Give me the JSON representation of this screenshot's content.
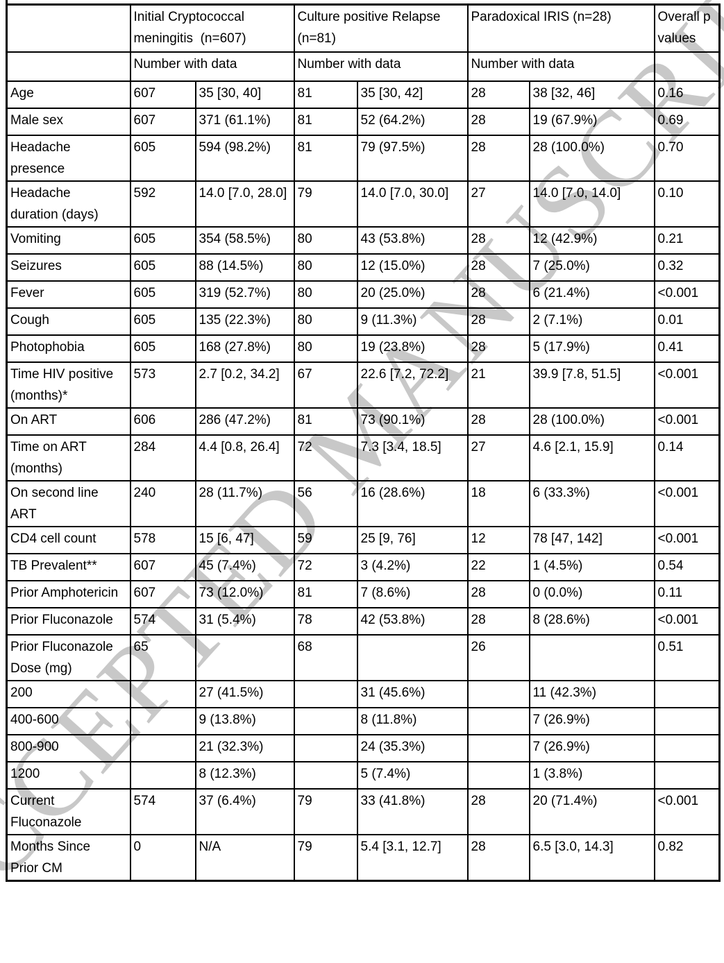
{
  "watermark": "ACCEPTED MANUSCRIPT",
  "table": {
    "header_row": [
      {
        "label": "",
        "colspan": 1
      },
      {
        "label": "Initial Cryptococcal\nmeningitis  (n=607)",
        "colspan": 2
      },
      {
        "label": "Culture positive Relapse\n(n=81)",
        "colspan": 2
      },
      {
        "label": "Paradoxical IRIS (n=28)",
        "colspan": 2
      },
      {
        "label": "Overall p\nvalues",
        "colspan": 1
      }
    ],
    "subheader_row": [
      {
        "label": "",
        "colspan": 1
      },
      {
        "label": "Number with data",
        "colspan": 2
      },
      {
        "label": "Number with data",
        "colspan": 2
      },
      {
        "label": "Number with data",
        "colspan": 2
      },
      {
        "label": "",
        "colspan": 1
      }
    ],
    "rows": [
      {
        "label": "Age",
        "cells": [
          "607",
          "35 [30, 40]",
          "81",
          "35 [30, 42]",
          "28",
          "38 [32, 46]",
          "0.16"
        ]
      },
      {
        "label": "Male sex",
        "cells": [
          "607",
          "371 (61.1%)",
          "81",
          "52 (64.2%)",
          "28",
          "19 (67.9%)",
          "0.69"
        ]
      },
      {
        "label": "Headache\npresence",
        "cells": [
          "605",
          "594 (98.2%)",
          "81",
          "79 (97.5%)",
          "28",
          "28 (100.0%)",
          "0.70"
        ]
      },
      {
        "label": "Headache\nduration (days)",
        "cells": [
          "592",
          "14.0 [7.0, 28.0]",
          "79",
          "14.0 [7.0, 30.0]",
          "27",
          "14.0 [7.0, 14.0]",
          "0.10"
        ]
      },
      {
        "label": "Vomiting",
        "cells": [
          "605",
          "354 (58.5%)",
          "80",
          "43 (53.8%)",
          "28",
          "12 (42.9%)",
          "0.21"
        ]
      },
      {
        "label": "Seizures",
        "cells": [
          "605",
          "88 (14.5%)",
          "80",
          "12 (15.0%)",
          "28",
          "7 (25.0%)",
          "0.32"
        ]
      },
      {
        "label": "Fever",
        "cells": [
          "605",
          "319 (52.7%)",
          "80",
          "20 (25.0%)",
          "28",
          "6 (21.4%)",
          "<0.001"
        ]
      },
      {
        "label": "Cough",
        "cells": [
          "605",
          "135 (22.3%)",
          "80",
          "9 (11.3%)",
          "28",
          "2 (7.1%)",
          "0.01"
        ]
      },
      {
        "label": "Photophobia",
        "cells": [
          "605",
          "168 (27.8%)",
          "80",
          "19 (23.8%)",
          "28",
          "5 (17.9%)",
          "0.41"
        ]
      },
      {
        "label": "Time HIV positive\n(months)*",
        "cells": [
          "573",
          "2.7 [0.2, 34.2]",
          "67",
          "22.6 [7.2, 72.2]",
          "21",
          "39.9 [7.8, 51.5]",
          "<0.001"
        ]
      },
      {
        "label": "On ART",
        "cells": [
          "606",
          "286 (47.2%)",
          "81",
          "73 (90.1%)",
          "28",
          "28 (100.0%)",
          "<0.001"
        ]
      },
      {
        "label": "Time on ART\n(months)",
        "cells": [
          "284",
          "4.4 [0.8, 26.4]",
          "72",
          "7.3 [3.4, 18.5]",
          "27",
          "4.6 [2.1, 15.9]",
          "0.14"
        ]
      },
      {
        "label": "On second line\nART",
        "cells": [
          "240",
          "28 (11.7%)",
          "56",
          "16 (28.6%)",
          "18",
          "6 (33.3%)",
          "<0.001"
        ]
      },
      {
        "label": "CD4 cell count",
        "cells": [
          "578",
          "15 [6, 47]",
          "59",
          "25 [9, 76]",
          "12",
          "78 [47, 142]",
          "<0.001"
        ]
      },
      {
        "label": "TB Prevalent**",
        "cells": [
          "607",
          "45 (7.4%)",
          "72",
          "3 (4.2%)",
          "22",
          "1 (4.5%)",
          "0.54"
        ]
      },
      {
        "label": "Prior Amphotericin",
        "cells": [
          "607",
          "73 (12.0%)",
          "81",
          "7 (8.6%)",
          "28",
          "0 (0.0%)",
          "0.11"
        ]
      },
      {
        "label": "Prior Fluconazole",
        "cells": [
          "574",
          "31 (5.4%)",
          "78",
          "42 (53.8%)",
          "28",
          "8 (28.6%)",
          "<0.001"
        ]
      },
      {
        "label": "Prior Fluconazole\nDose (mg)",
        "cells": [
          "65",
          "",
          "68",
          "",
          "26",
          "",
          "0.51"
        ]
      },
      {
        "label": "200",
        "cells": [
          "",
          "27 (41.5%)",
          "",
          "31 (45.6%)",
          "",
          "11 (42.3%)",
          ""
        ]
      },
      {
        "label": "400-600",
        "cells": [
          "",
          "9 (13.8%)",
          "",
          "8 (11.8%)",
          "",
          "7 (26.9%)",
          ""
        ]
      },
      {
        "label": "800-900",
        "cells": [
          "",
          "21 (32.3%)",
          "",
          "24 (35.3%)",
          "",
          "7 (26.9%)",
          ""
        ]
      },
      {
        "label": "1200",
        "cells": [
          "",
          "8 (12.3%)",
          "",
          "5 (7.4%)",
          "",
          "1 (3.8%)",
          ""
        ]
      },
      {
        "label": "Current\nFluconazole",
        "cells": [
          "574",
          "37 (6.4%)",
          "79",
          "33 (41.8%)",
          "28",
          "20 (71.4%)",
          "<0.001"
        ]
      },
      {
        "label": "Months Since\nPrior CM",
        "cells": [
          "0",
          "N/A",
          "79",
          "5.4 [3.1, 12.7]",
          "28",
          "6.5 [3.0, 14.3]",
          "0.82"
        ]
      }
    ]
  }
}
